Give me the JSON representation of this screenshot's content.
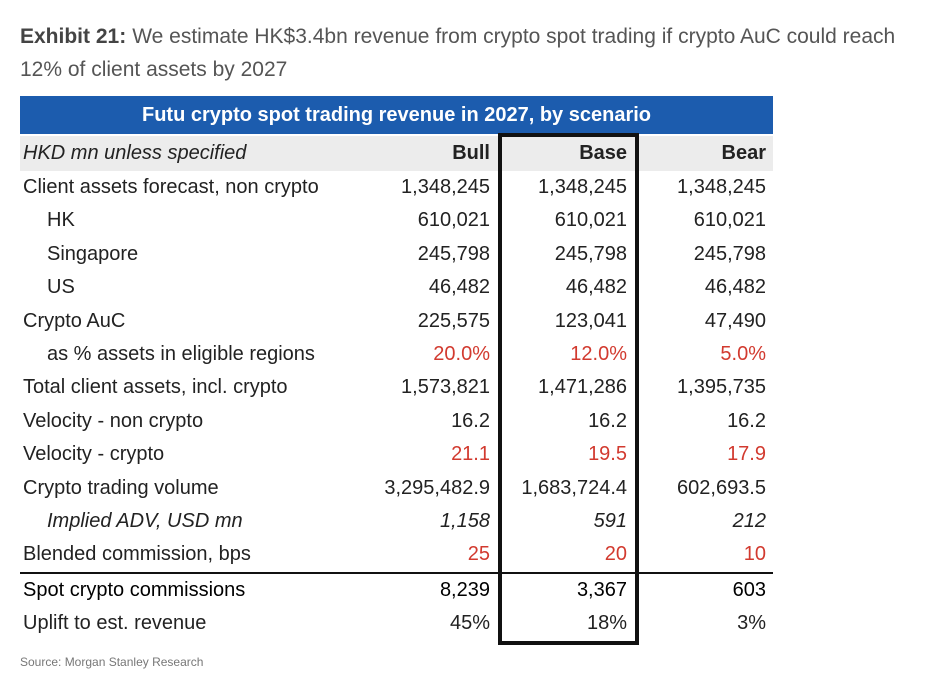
{
  "exhibit": {
    "label": "Exhibit 21:",
    "title": "We estimate HK$3.4bn revenue from crypto spot trading if crypto AuC could reach 12% of client assets by 2027"
  },
  "table": {
    "banner": "Futu crypto spot trading revenue in 2027, by scenario",
    "header": {
      "label": "HKD mn unless specified",
      "bull": "Bull",
      "base": "Base",
      "bear": "Bear"
    },
    "rows": [
      {
        "label": "Client assets forecast, non crypto",
        "bull": "1,348,245",
        "base": "1,348,245",
        "bear": "1,348,245"
      },
      {
        "label": "HK",
        "bull": "610,021",
        "base": "610,021",
        "bear": "610,021"
      },
      {
        "label": "Singapore",
        "bull": "245,798",
        "base": "245,798",
        "bear": "245,798"
      },
      {
        "label": "US",
        "bull": "46,482",
        "base": "46,482",
        "bear": "46,482"
      },
      {
        "label": "Crypto AuC",
        "bull": "225,575",
        "base": "123,041",
        "bear": "47,490"
      },
      {
        "label": "as % assets in eligible regions",
        "bull": "20.0%",
        "base": "12.0%",
        "bear": "5.0%"
      },
      {
        "label": "Total client assets, incl. crypto",
        "bull": "1,573,821",
        "base": "1,471,286",
        "bear": "1,395,735"
      },
      {
        "label": "Velocity - non crypto",
        "bull": "16.2",
        "base": "16.2",
        "bear": "16.2"
      },
      {
        "label": "Velocity - crypto",
        "bull": "21.1",
        "base": "19.5",
        "bear": "17.9"
      },
      {
        "label": "Crypto trading volume",
        "bull": "3,295,482.9",
        "base": "1,683,724.4",
        "bear": "602,693.5"
      },
      {
        "label": "Implied ADV, USD mn",
        "bull": "1,158",
        "base": "591",
        "bear": "212"
      },
      {
        "label": "Blended commission, bps",
        "bull": "25",
        "base": "20",
        "bear": "10"
      },
      {
        "label": "Spot crypto commissions",
        "bull": "8,239",
        "base": "3,367",
        "bear": "603"
      },
      {
        "label": "Uplift to est. revenue",
        "bull": "45%",
        "base": "18%",
        "bear": "3%"
      }
    ]
  },
  "source": "Source: Morgan Stanley Research",
  "colors": {
    "banner_bg": "#1c5cae",
    "assumption_red": "#d23a2f",
    "header_bg": "#ececec"
  }
}
